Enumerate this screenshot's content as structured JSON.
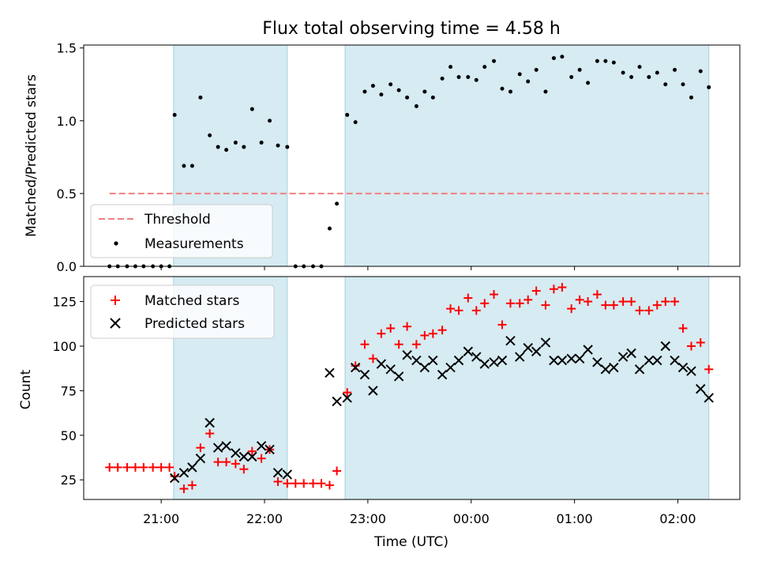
{
  "chart_data": [
    {
      "type": "scatter",
      "title": "Flux total observing time = 4.58 h",
      "xlabel": "",
      "ylabel": "Matched/Predicted stars",
      "x_axis_kind": "time (hours; 24 = 00:00 next day)",
      "xlim": [
        20.25,
        26.6
      ],
      "ylim": [
        0,
        1.52
      ],
      "yticks": [
        0,
        0.5,
        1.0,
        1.5
      ],
      "ytick_labels": [
        "0.0",
        "0.5",
        "1.0",
        "1.5"
      ],
      "grid": false,
      "legend_position": "lower-left",
      "shaded_intervals": [
        [
          21.12,
          22.22
        ],
        [
          22.78,
          26.3
        ]
      ],
      "threshold": {
        "name": "Threshold",
        "y": 0.5,
        "x_range": [
          20.5,
          26.3
        ],
        "color": "#f08080"
      },
      "series": [
        {
          "name": "Measurements",
          "color": "#000000",
          "marker": "dot",
          "x": [
            20.5,
            20.58,
            20.67,
            20.75,
            20.83,
            20.92,
            21.0,
            21.08,
            21.13,
            21.22,
            21.3,
            21.38,
            21.47,
            21.55,
            21.63,
            21.72,
            21.8,
            21.88,
            21.97,
            22.05,
            22.13,
            22.22,
            22.3,
            22.38,
            22.47,
            22.55,
            22.63,
            22.7,
            22.8,
            22.88,
            22.97,
            23.05,
            23.13,
            23.22,
            23.3,
            23.38,
            23.47,
            23.55,
            23.63,
            23.72,
            23.8,
            23.88,
            23.97,
            24.05,
            24.13,
            24.22,
            24.3,
            24.38,
            24.47,
            24.55,
            24.63,
            24.72,
            24.8,
            24.88,
            24.97,
            25.05,
            25.13,
            25.22,
            25.3,
            25.38,
            25.47,
            25.55,
            25.63,
            25.72,
            25.8,
            25.88,
            25.97,
            26.05,
            26.13,
            26.22,
            26.3
          ],
          "y": [
            0.0,
            0.0,
            0.0,
            0.0,
            0.0,
            0.0,
            0.0,
            0.0,
            1.04,
            0.69,
            0.69,
            1.16,
            0.9,
            0.82,
            0.8,
            0.85,
            0.82,
            1.08,
            0.85,
            1.0,
            0.83,
            0.82,
            0.0,
            0.0,
            0.0,
            0.0,
            0.26,
            0.43,
            1.04,
            0.99,
            1.2,
            1.24,
            1.18,
            1.25,
            1.21,
            1.16,
            1.1,
            1.2,
            1.16,
            1.29,
            1.37,
            1.3,
            1.3,
            1.28,
            1.37,
            1.41,
            1.22,
            1.2,
            1.32,
            1.27,
            1.35,
            1.2,
            1.43,
            1.44,
            1.3,
            1.35,
            1.26,
            1.41,
            1.41,
            1.4,
            1.33,
            1.3,
            1.37,
            1.3,
            1.33,
            1.25,
            1.35,
            1.25,
            1.16,
            1.34,
            1.23
          ]
        }
      ]
    },
    {
      "type": "scatter",
      "title": "",
      "xlabel": "Time (UTC)",
      "ylabel": "Count",
      "x_axis_kind": "time (hours; 24 = 00:00 next day)",
      "xlim": [
        20.25,
        26.6
      ],
      "ylim": [
        14,
        139
      ],
      "yticks": [
        25,
        50,
        75,
        100,
        125
      ],
      "ytick_labels": [
        "25",
        "50",
        "75",
        "100",
        "125"
      ],
      "xticks": [
        21,
        22,
        23,
        24,
        25,
        26
      ],
      "xtick_labels": [
        "21:00",
        "22:00",
        "23:00",
        "00:00",
        "01:00",
        "02:00"
      ],
      "grid": false,
      "legend_position": "upper-left",
      "shaded_intervals": [
        [
          21.12,
          22.22
        ],
        [
          22.78,
          26.3
        ]
      ],
      "series": [
        {
          "name": "Matched stars",
          "color": "#ff0000",
          "marker": "plus",
          "x": [
            20.5,
            20.58,
            20.67,
            20.75,
            20.83,
            20.92,
            21.0,
            21.08,
            21.13,
            21.22,
            21.3,
            21.38,
            21.47,
            21.55,
            21.63,
            21.72,
            21.8,
            21.88,
            21.97,
            22.05,
            22.13,
            22.22,
            22.3,
            22.38,
            22.47,
            22.55,
            22.63,
            22.7,
            22.8,
            22.88,
            22.97,
            23.05,
            23.13,
            23.22,
            23.3,
            23.38,
            23.47,
            23.55,
            23.63,
            23.72,
            23.8,
            23.88,
            23.97,
            24.05,
            24.13,
            24.22,
            24.3,
            24.38,
            24.47,
            24.55,
            24.63,
            24.72,
            24.8,
            24.88,
            24.97,
            25.05,
            25.13,
            25.22,
            25.3,
            25.38,
            25.47,
            25.55,
            25.63,
            25.72,
            25.8,
            25.88,
            25.97,
            26.05,
            26.13,
            26.22,
            26.3
          ],
          "y": [
            32,
            32,
            32,
            32,
            32,
            32,
            32,
            32,
            27,
            20,
            22,
            43,
            51,
            35,
            35,
            34,
            31,
            41,
            37,
            42,
            24,
            23,
            23,
            23,
            23,
            23,
            22,
            30,
            74,
            89,
            101,
            93,
            107,
            110,
            101,
            111,
            101,
            106,
            107,
            109,
            121,
            120,
            127,
            120,
            124,
            129,
            112,
            124,
            124,
            126,
            131,
            123,
            132,
            133,
            121,
            126,
            125,
            129,
            123,
            123,
            125,
            125,
            120,
            120,
            123,
            125,
            125,
            110,
            100,
            102,
            87
          ]
        },
        {
          "name": "Predicted stars",
          "color": "#000000",
          "marker": "x",
          "x": [
            21.13,
            21.22,
            21.3,
            21.38,
            21.47,
            21.55,
            21.63,
            21.72,
            21.8,
            21.88,
            21.97,
            22.05,
            22.13,
            22.22,
            22.63,
            22.7,
            22.8,
            22.88,
            22.97,
            23.05,
            23.13,
            23.22,
            23.3,
            23.38,
            23.47,
            23.55,
            23.63,
            23.72,
            23.8,
            23.88,
            23.97,
            24.05,
            24.13,
            24.22,
            24.3,
            24.38,
            24.47,
            24.55,
            24.63,
            24.72,
            24.8,
            24.88,
            24.97,
            25.05,
            25.13,
            25.22,
            25.3,
            25.38,
            25.47,
            25.55,
            25.63,
            25.72,
            25.8,
            25.88,
            25.97,
            26.05,
            26.13,
            26.22,
            26.3
          ],
          "y": [
            26,
            29,
            32,
            37,
            57,
            43,
            44,
            40,
            38,
            38,
            44,
            42,
            29,
            28,
            85,
            69,
            71,
            88,
            84,
            75,
            90,
            87,
            83,
            95,
            92,
            88,
            92,
            84,
            88,
            92,
            97,
            94,
            90,
            91,
            92,
            103,
            94,
            99,
            97,
            102,
            92,
            92,
            93,
            93,
            98,
            91,
            87,
            88,
            94,
            96,
            87,
            92,
            92,
            100,
            92,
            88,
            86,
            76,
            71
          ]
        }
      ]
    }
  ]
}
